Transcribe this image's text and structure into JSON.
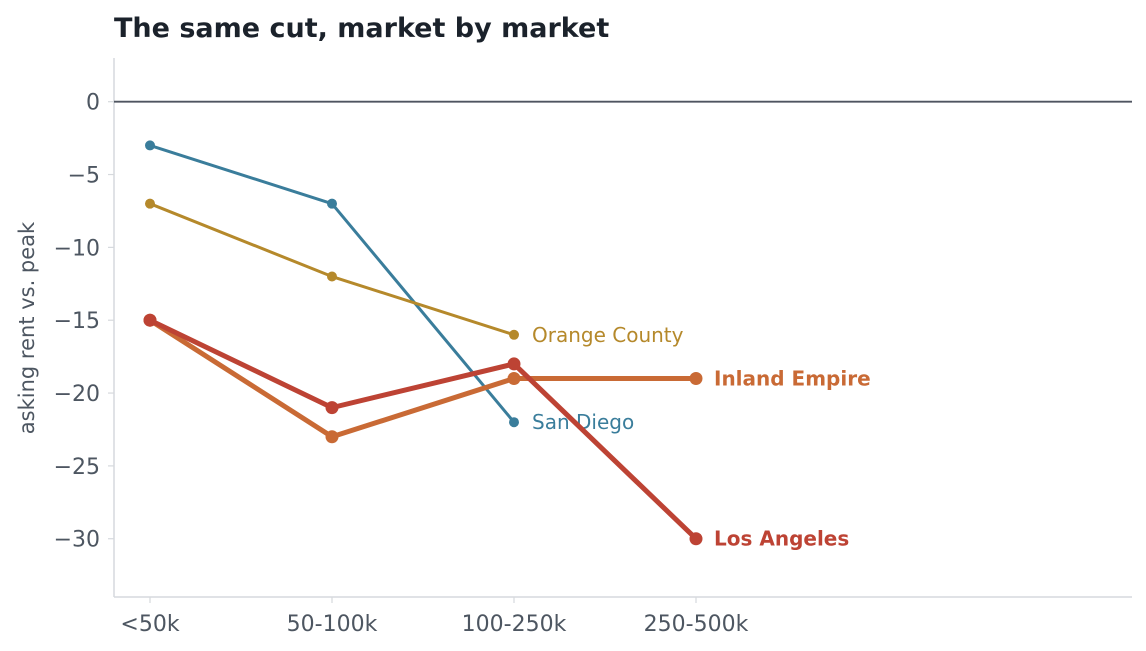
{
  "chart_data": {
    "type": "line",
    "title": "The same cut, market by market",
    "xlabel": "",
    "ylabel": "asking rent vs. peak",
    "categories": [
      "<50k",
      "50-100k",
      "100-250k",
      "250-500k"
    ],
    "y_ticks": [
      "0",
      "−5",
      "−10",
      "−15",
      "−20",
      "−25",
      "−30"
    ],
    "ylim": [
      -34,
      3
    ],
    "zero_line": true,
    "grid": false,
    "legend": "direct labels at line ends",
    "series": [
      {
        "name": "San Diego",
        "color": "#3a7d9b",
        "emphasis": false,
        "values": [
          -3,
          -7,
          -22,
          null
        ]
      },
      {
        "name": "Orange County",
        "color": "#b5892b",
        "emphasis": false,
        "values": [
          -7,
          -12,
          -16,
          null
        ]
      },
      {
        "name": "Inland Empire",
        "color": "#c96a35",
        "emphasis": true,
        "values": [
          -15,
          -23,
          -19,
          -19
        ]
      },
      {
        "name": "Los Angeles",
        "color": "#bd4334",
        "emphasis": true,
        "values": [
          -15,
          -21,
          -18,
          -30
        ]
      }
    ]
  }
}
